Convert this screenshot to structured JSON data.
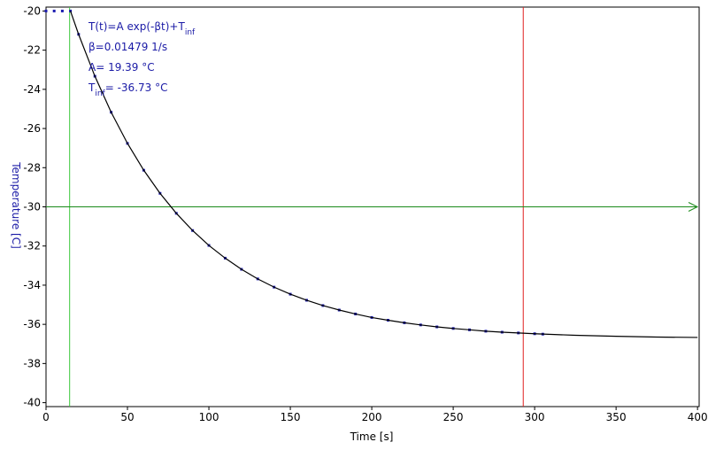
{
  "chart_data": {
    "type": "scatter",
    "x_label": "Time [s]",
    "y_label": "Temperature [C]",
    "xlim": [
      0,
      401
    ],
    "ylim": [
      -40.2,
      -19.8
    ],
    "xticks": [
      0,
      50,
      100,
      150,
      200,
      250,
      300,
      350,
      400
    ],
    "yticks": [
      -20,
      -22,
      -24,
      -26,
      -28,
      -30,
      -32,
      -34,
      -36,
      -38,
      -40
    ],
    "annotations": [
      [
        {
          "text": "T(t)=A exp(-βt)+T"
        },
        {
          "text": "inf",
          "sub": true
        }
      ],
      [
        {
          "text": "β=0.01479 1/s"
        }
      ],
      [
        {
          "text": "A= 19.39 °C"
        }
      ],
      [
        {
          "text": "T"
        },
        {
          "text": "inf",
          "sub": true
        },
        {
          "text": "= -36.73 °C"
        }
      ]
    ],
    "series": [
      {
        "style": "markers",
        "color": "#1c1cb0",
        "x": [
          0,
          5,
          10,
          15,
          20,
          30,
          40,
          50,
          60,
          70,
          80,
          90,
          100,
          110,
          120,
          130,
          140,
          150,
          160,
          170,
          180,
          190,
          200,
          210,
          220,
          230,
          240,
          250,
          260,
          270,
          280,
          290,
          300,
          305
        ],
        "values": [
          -20,
          -20,
          -20,
          -20,
          -21.19,
          -23.33,
          -25.17,
          -26.76,
          -28.13,
          -29.31,
          -30.33,
          -31.21,
          -31.97,
          -32.62,
          -33.19,
          -33.68,
          -34.1,
          -34.46,
          -34.77,
          -35.04,
          -35.27,
          -35.47,
          -35.65,
          -35.79,
          -35.92,
          -36.03,
          -36.13,
          -36.21,
          -36.28,
          -36.35,
          -36.4,
          -36.44,
          -36.48,
          -36.5
        ]
      },
      {
        "style": "line",
        "color": "#000000",
        "x": [
          15,
          20,
          30,
          40,
          50,
          60,
          70,
          80,
          90,
          100,
          110,
          120,
          130,
          140,
          150,
          160,
          170,
          180,
          190,
          200,
          210,
          220,
          230,
          240,
          250,
          260,
          270,
          280,
          290,
          300,
          325,
          350,
          375,
          400
        ],
        "values": [
          -20,
          -21.19,
          -23.33,
          -25.17,
          -26.76,
          -28.13,
          -29.31,
          -30.33,
          -31.21,
          -31.97,
          -32.62,
          -33.19,
          -33.68,
          -34.1,
          -34.46,
          -34.77,
          -35.04,
          -35.27,
          -35.47,
          -35.65,
          -35.79,
          -35.92,
          -36.03,
          -36.13,
          -36.21,
          -36.28,
          -36.35,
          -36.4,
          -36.44,
          -36.48,
          -36.56,
          -36.61,
          -36.65,
          -36.67
        ]
      }
    ],
    "cursors": {
      "vertical": [
        {
          "x": 14.5,
          "color": "#3cc83c"
        },
        {
          "x": 293,
          "color": "#e02020"
        }
      ],
      "horizontal": [
        {
          "y": -30,
          "color": "#1a8a1a"
        }
      ]
    }
  }
}
